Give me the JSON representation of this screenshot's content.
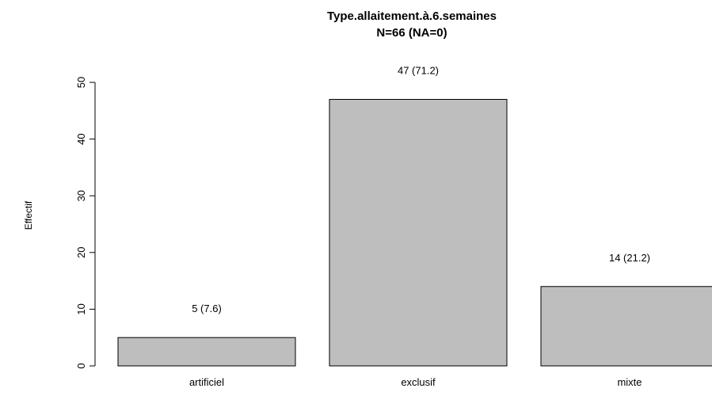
{
  "chart_data": {
    "type": "bar",
    "title": "Type.allaitement.à.6.semaines",
    "subtitle": "N=66 (NA=0)",
    "xlabel": "",
    "ylabel": "Effectif",
    "categories": [
      "artificiel",
      "exclusif",
      "mixte"
    ],
    "values": [
      5,
      47,
      14
    ],
    "bar_labels": [
      "5 (7.6)",
      "47 (71.2)",
      "14 (21.2)"
    ],
    "ylim": [
      0,
      50
    ],
    "yticks": [
      0,
      10,
      20,
      30,
      40,
      50
    ],
    "grid": false,
    "legend": "none",
    "bar_color": "#bebebe",
    "border_color": "#000000"
  }
}
